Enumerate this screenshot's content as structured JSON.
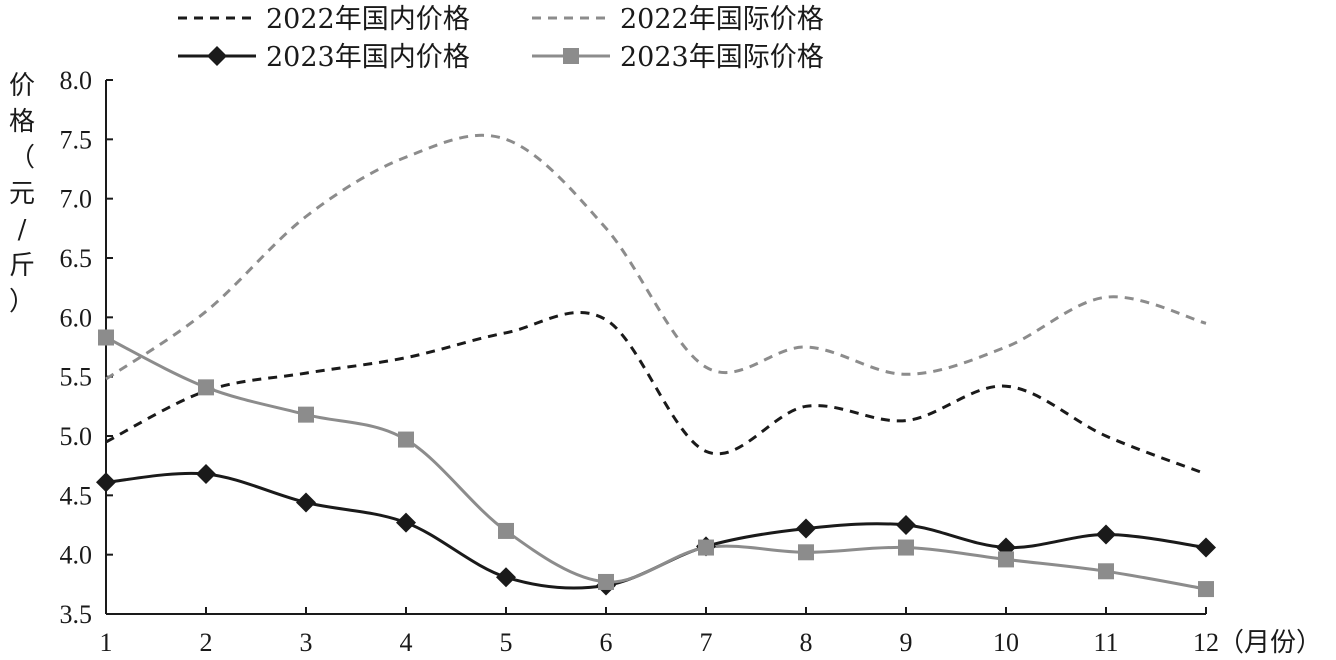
{
  "chart_data": {
    "type": "line",
    "ylabel": "价格（元/斤）",
    "xlabel": "（月份）",
    "ylim": [
      3.5,
      8.0
    ],
    "yticks": [
      "3.5",
      "4.0",
      "4.5",
      "5.0",
      "5.5",
      "6.0",
      "6.5",
      "7.0",
      "7.5",
      "8.0"
    ],
    "x": [
      1,
      2,
      3,
      4,
      5,
      6,
      7,
      8,
      9,
      10,
      11,
      12
    ],
    "xtick_labels": [
      "1",
      "2",
      "3",
      "4",
      "5",
      "6",
      "7",
      "8",
      "9",
      "10",
      "11",
      "12"
    ],
    "grid": false,
    "legend_position": "top",
    "series": [
      {
        "name": "2022年国内价格",
        "values": [
          4.95,
          5.38,
          5.53,
          5.66,
          5.87,
          5.98,
          4.87,
          5.25,
          5.13,
          5.42,
          5.0,
          4.68
        ],
        "color": "#1a1a1a",
        "dash": true,
        "marker": "none"
      },
      {
        "name": "2022年国际价格",
        "values": [
          5.48,
          6.05,
          6.85,
          7.35,
          7.5,
          6.75,
          5.58,
          5.75,
          5.52,
          5.75,
          6.17,
          5.95
        ],
        "color": "#8c8c8c",
        "dash": true,
        "marker": "none"
      },
      {
        "name": "2023年国内价格",
        "values": [
          4.61,
          4.68,
          4.44,
          4.27,
          3.81,
          3.74,
          4.07,
          4.22,
          4.25,
          4.06,
          4.17,
          4.06
        ],
        "color": "#1a1a1a",
        "dash": false,
        "marker": "diamond"
      },
      {
        "name": "2023年国际价格",
        "values": [
          5.83,
          5.41,
          5.18,
          4.97,
          4.2,
          3.77,
          4.06,
          4.02,
          4.06,
          3.96,
          3.86,
          3.71
        ],
        "color": "#8c8c8c",
        "dash": false,
        "marker": "square"
      }
    ]
  }
}
